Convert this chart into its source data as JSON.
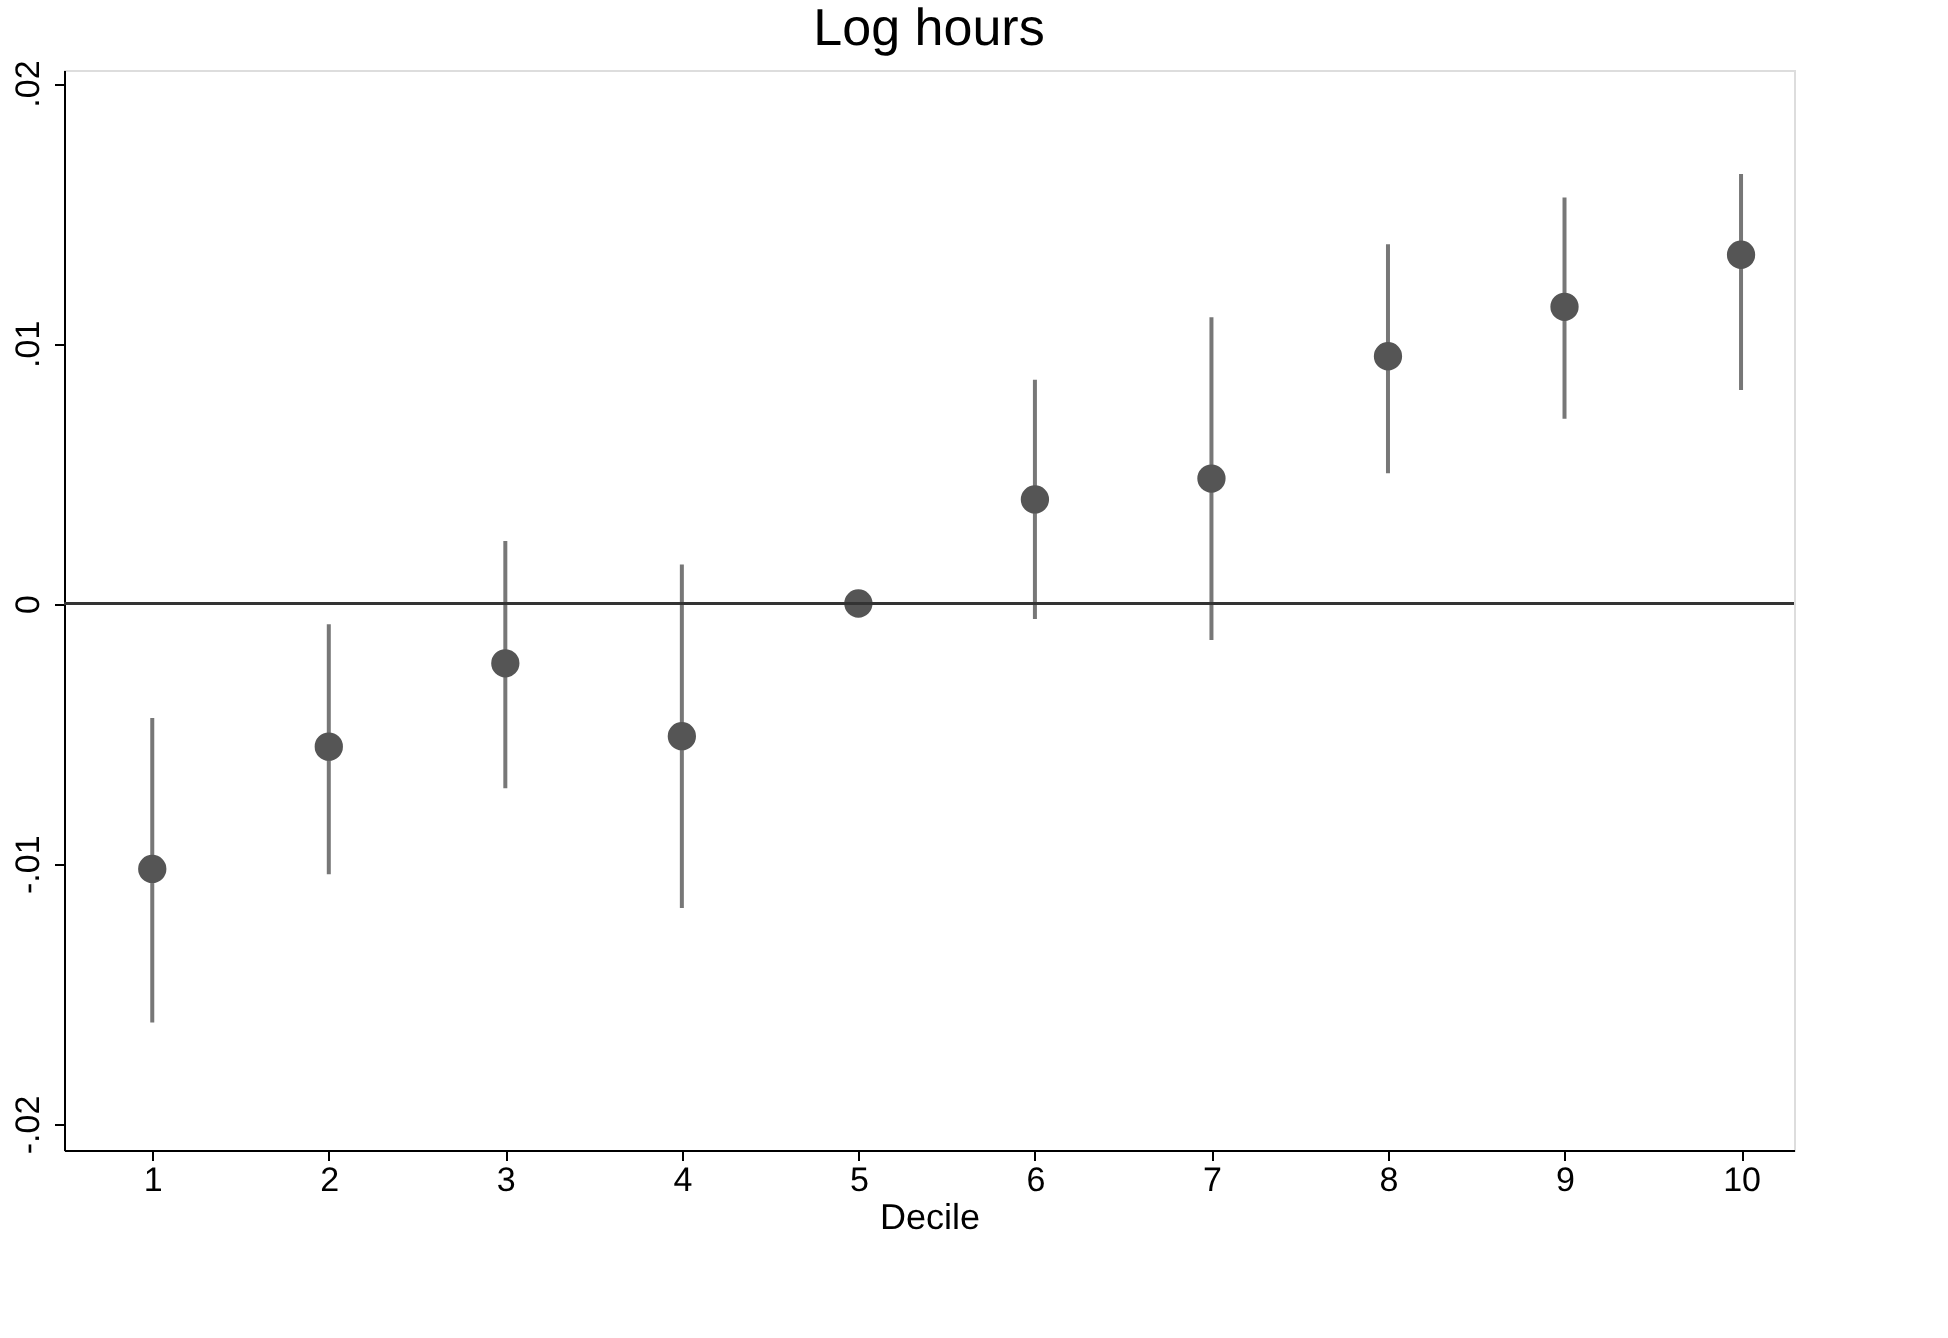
{
  "chart_data": {
    "type": "scatter",
    "title": "Log hours",
    "xlabel": "Decile",
    "x": [
      1,
      2,
      3,
      4,
      5,
      6,
      7,
      8,
      9,
      10
    ],
    "series": [
      {
        "color": "#555555",
        "values": [
          -0.0102,
          -0.0055,
          -0.0023,
          -0.0051,
          0,
          0.004,
          0.0048,
          0.0095,
          0.0114,
          0.0134
        ],
        "errors": [
          [
            -0.0161,
            -0.0044
          ],
          [
            -0.0104,
            -0.0008
          ],
          [
            -0.0071,
            0.0024
          ],
          [
            -0.0117,
            0.0015
          ],
          null,
          [
            -0.0006,
            0.0086
          ],
          [
            -0.0014,
            0.011
          ],
          [
            0.005,
            0.0138
          ],
          [
            0.0071,
            0.0156
          ],
          [
            0.0082,
            0.0165
          ]
        ]
      }
    ],
    "xlim": [
      0.5,
      10.3
    ],
    "xticks": [
      1,
      2,
      3,
      4,
      5,
      6,
      7,
      8,
      9,
      10
    ],
    "ylim": [
      -0.021,
      0.0205
    ],
    "yticks": [
      {
        "value": -0.02,
        "label": "-.02"
      },
      {
        "value": -0.01,
        "label": "-.01"
      },
      {
        "value": 0,
        "label": "0"
      },
      {
        "value": 0.01,
        "label": ".01"
      },
      {
        "value": 0.02,
        "label": ".02"
      }
    ],
    "ref_lines": [
      {
        "axis": "y",
        "value": 0,
        "color": "#333333"
      }
    ],
    "marker": "circle",
    "grid": false
  }
}
